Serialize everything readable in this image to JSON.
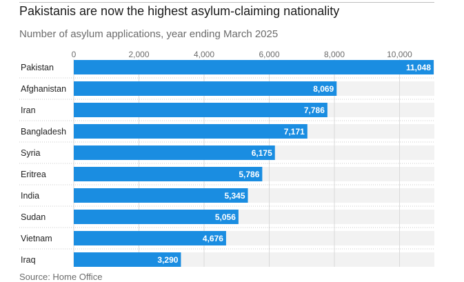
{
  "header": {
    "title": "Pakistanis are now the highest asylum-claiming nationality",
    "subtitle": "Number of asylum applications, year ending March 2025"
  },
  "footer": {
    "source": "Source: Home Office"
  },
  "colors": {
    "bar": "#1a8de1",
    "track": "#f2f2f2",
    "grid": "#d9d9d9"
  },
  "chart_data": {
    "type": "bar",
    "orientation": "horizontal",
    "categories": [
      "Pakistan",
      "Afghanistan",
      "Iran",
      "Bangladesh",
      "Syria",
      "Eritrea",
      "India",
      "Sudan",
      "Vietnam",
      "Iraq"
    ],
    "values": [
      11048,
      8069,
      7786,
      7171,
      6175,
      5786,
      5345,
      5056,
      4676,
      3290
    ],
    "value_labels": [
      "11,048",
      "8,069",
      "7,786",
      "7,171",
      "6,175",
      "5,786",
      "5,345",
      "5,056",
      "4,676",
      "3,290"
    ],
    "x_ticks": [
      0,
      2000,
      4000,
      6000,
      8000,
      10000
    ],
    "x_tick_labels": [
      "0",
      "2,000",
      "4,000",
      "6,000",
      "8,000",
      "10,000"
    ],
    "xlim": [
      0,
      11048
    ],
    "title": "Pakistanis are now the highest asylum-claiming nationality",
    "subtitle": "Number of asylum applications, year ending March 2025",
    "grid": true,
    "axis_position": "top"
  }
}
